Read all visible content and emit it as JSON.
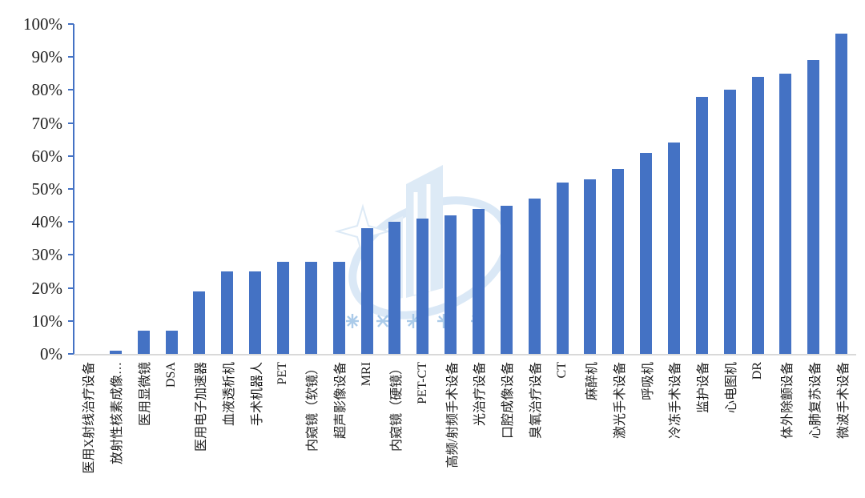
{
  "chart_data": {
    "type": "bar",
    "title": "",
    "categories": [
      "医用X射线治疗设备",
      "放射性核素成像…",
      "医用显微镜",
      "DSA",
      "医用电子加速器",
      "血液透析机",
      "手术机器人",
      "PET",
      "内窥镜（软镜）",
      "超声影像设备",
      "MRI",
      "内窥镜（硬镜）",
      "PET-CT",
      "高频/射频手术设备",
      "光治疗设备",
      "口腔成像设备",
      "臭氧治疗设备",
      "CT",
      "麻醉机",
      "激光手术设备",
      "呼吸机",
      "冷冻手术设备",
      "监护设备",
      "心电图机",
      "DR",
      "体外除颤设备",
      "心肺复苏设备",
      "微波手术设备"
    ],
    "values": [
      0,
      1,
      7,
      7,
      19,
      25,
      25,
      28,
      28,
      28,
      38,
      40,
      41,
      42,
      44,
      45,
      47,
      52,
      53,
      56,
      61,
      64,
      78,
      80,
      84,
      85,
      89,
      97
    ],
    "xlabel": "",
    "ylabel": "",
    "ylim": [
      0,
      100
    ],
    "ytick_labels": [
      "0%",
      "10%",
      "20%",
      "30%",
      "40%",
      "50%",
      "60%",
      "70%",
      "80%",
      "90%",
      "100%"
    ],
    "grid": false,
    "legend": "none",
    "bar_color": "#4472C4",
    "axis_color": "#4472C4",
    "baseline_color": "#D9D9D9",
    "tick_label_color": "#1F1F1F",
    "watermark_color": "#9DC3E6"
  }
}
